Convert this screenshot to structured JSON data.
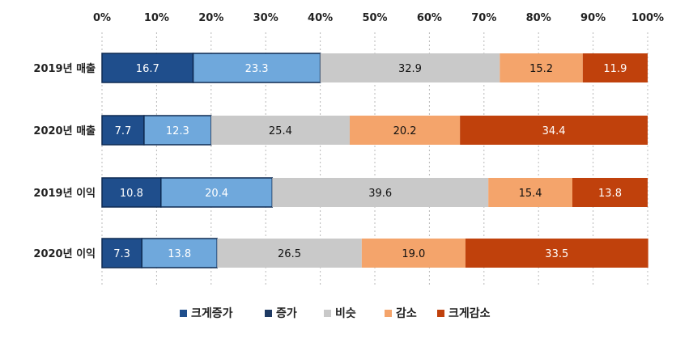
{
  "chart_data": {
    "type": "bar",
    "orientation": "horizontal",
    "stacked": "percent",
    "title": "",
    "xlabel": "",
    "ylabel": "",
    "xlim": [
      0,
      100
    ],
    "x_ticks": [
      "0%",
      "10%",
      "20%",
      "30%",
      "40%",
      "50%",
      "60%",
      "70%",
      "80%",
      "90%",
      "100%"
    ],
    "grid": "vertical dashed",
    "legend_position": "bottom",
    "categories": [
      "2019년 매출",
      "2020년 매출",
      "2019년 이익",
      "2020년 이익"
    ],
    "series": [
      {
        "name": "크게증가",
        "color": "#1f4e8c",
        "label_color": "#ffffff",
        "values": [
          16.7,
          7.7,
          10.8,
          7.3
        ],
        "labels": [
          "16.7",
          "7.7",
          "10.8",
          "7.3"
        ]
      },
      {
        "name": "증가",
        "color": "#6fa8dc",
        "label_color": "#ffffff",
        "values": [
          23.3,
          12.3,
          20.4,
          13.8
        ],
        "labels": [
          "23.3",
          "12.3",
          "20.4",
          "13.8"
        ]
      },
      {
        "name": "비슷",
        "color": "#c9c9c9",
        "label_color": "#111111",
        "values": [
          32.9,
          25.4,
          39.6,
          26.5
        ],
        "labels": [
          "32.9",
          "25.4",
          "39.6",
          "26.5"
        ]
      },
      {
        "name": "감소",
        "color": "#f4a46b",
        "label_color": "#111111",
        "values": [
          15.2,
          20.2,
          15.4,
          19.0
        ],
        "labels": [
          "15.2",
          "20.2",
          "15.4",
          "19.0"
        ]
      },
      {
        "name": "크게감소",
        "color": "#c0410c",
        "label_color": "#ffffff",
        "values": [
          11.9,
          34.4,
          13.8,
          33.5
        ],
        "labels": [
          "11.9",
          "34.4",
          "13.8",
          "33.5"
        ]
      }
    ]
  }
}
